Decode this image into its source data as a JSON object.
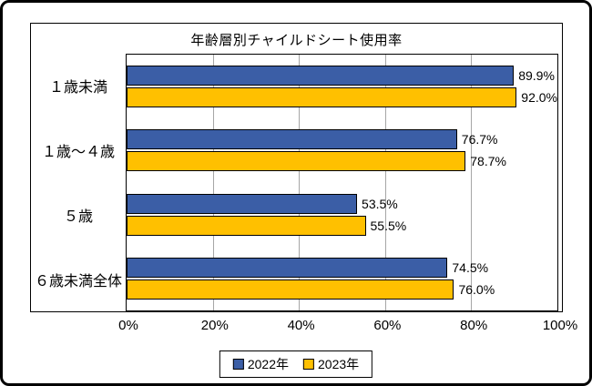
{
  "chart_data": {
    "type": "bar",
    "orientation": "horizontal",
    "title": "年齢層別チャイルドシート使用率",
    "categories": [
      "１歳未満",
      "１歳～４歳",
      "５歳",
      "６歳未満全体"
    ],
    "series": [
      {
        "name": "2022年",
        "color": "#3B5EA6",
        "values": [
          89.9,
          76.7,
          53.5,
          74.5
        ]
      },
      {
        "name": "2023年",
        "color": "#FFC000",
        "values": [
          92.0,
          78.7,
          55.5,
          76.0
        ]
      }
    ],
    "value_suffix": "%",
    "value_decimals": 1,
    "xlim": [
      0,
      100
    ],
    "x_ticks": [
      {
        "value": 0,
        "label": "0%"
      },
      {
        "value": 20,
        "label": "20%"
      },
      {
        "value": 40,
        "label": "40%"
      },
      {
        "value": 60,
        "label": "60%"
      },
      {
        "value": 80,
        "label": "80%"
      },
      {
        "value": 100,
        "label": "100%"
      }
    ],
    "grid": true,
    "legend_position": "bottom"
  },
  "colors": {
    "bar_border": "#000000",
    "gridline": "#A6A6A6",
    "plot_border": "#000000",
    "frame_border": "#000000",
    "background": "#FFFFFF"
  }
}
